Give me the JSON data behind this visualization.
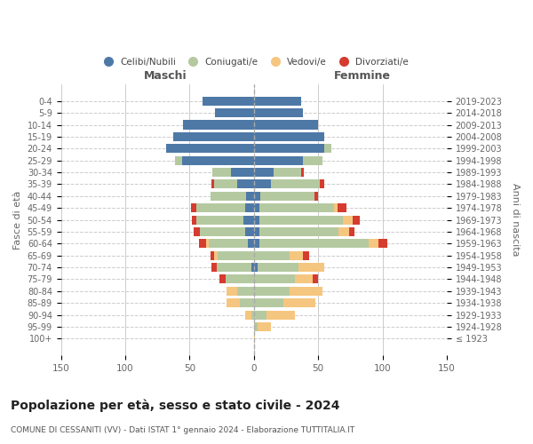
{
  "age_groups": [
    "100+",
    "95-99",
    "90-94",
    "85-89",
    "80-84",
    "75-79",
    "70-74",
    "65-69",
    "60-64",
    "55-59",
    "50-54",
    "45-49",
    "40-44",
    "35-39",
    "30-34",
    "25-29",
    "20-24",
    "15-19",
    "10-14",
    "5-9",
    "0-4"
  ],
  "birth_years": [
    "≤ 1923",
    "1924-1928",
    "1929-1933",
    "1934-1938",
    "1939-1943",
    "1944-1948",
    "1949-1953",
    "1954-1958",
    "1959-1963",
    "1964-1968",
    "1969-1973",
    "1974-1978",
    "1979-1983",
    "1984-1988",
    "1989-1993",
    "1994-1998",
    "1999-2003",
    "2004-2008",
    "2009-2013",
    "2014-2018",
    "2019-2023"
  ],
  "males": {
    "celibi": [
      0,
      0,
      0,
      0,
      0,
      0,
      2,
      0,
      5,
      7,
      8,
      7,
      6,
      13,
      18,
      56,
      68,
      63,
      55,
      30,
      40
    ],
    "coniugati": [
      0,
      0,
      2,
      11,
      13,
      22,
      27,
      28,
      30,
      35,
      37,
      38,
      28,
      18,
      14,
      5,
      0,
      0,
      0,
      0,
      0
    ],
    "vedovi": [
      0,
      0,
      5,
      10,
      8,
      0,
      0,
      3,
      2,
      0,
      0,
      0,
      0,
      0,
      0,
      0,
      0,
      0,
      0,
      0,
      0
    ],
    "divorziati": [
      0,
      0,
      0,
      0,
      0,
      5,
      4,
      3,
      6,
      5,
      3,
      4,
      0,
      2,
      0,
      0,
      0,
      0,
      0,
      0,
      0
    ]
  },
  "females": {
    "nubili": [
      0,
      0,
      0,
      0,
      0,
      0,
      3,
      0,
      4,
      4,
      4,
      4,
      5,
      13,
      15,
      38,
      55,
      55,
      50,
      38,
      37
    ],
    "coniugate": [
      0,
      3,
      10,
      23,
      28,
      32,
      32,
      28,
      85,
      62,
      65,
      58,
      42,
      38,
      22,
      15,
      5,
      0,
      0,
      0,
      0
    ],
    "vedove": [
      1,
      10,
      22,
      25,
      25,
      14,
      20,
      10,
      8,
      8,
      8,
      3,
      0,
      0,
      0,
      0,
      0,
      0,
      0,
      0,
      0
    ],
    "divorziate": [
      0,
      0,
      0,
      0,
      0,
      4,
      0,
      5,
      7,
      4,
      5,
      7,
      3,
      4,
      2,
      0,
      0,
      0,
      0,
      0,
      0
    ]
  },
  "colors": {
    "celibi_nubili": "#4e79a7",
    "coniugati": "#b5c9a1",
    "vedovi": "#f5c67f",
    "divorziati": "#d63b30"
  },
  "title": "Popolazione per età, sesso e stato civile - 2024",
  "subtitle": "COMUNE DI CESSANITI (VV) - Dati ISTAT 1° gennaio 2024 - Elaborazione TUTTITALIA.IT",
  "xlabel_left": "Maschi",
  "xlabel_right": "Femmine",
  "ylabel_left": "Fasce di età",
  "ylabel_right": "Anni di nascita",
  "xlim": 150,
  "background_color": "#ffffff",
  "grid_color": "#cccccc"
}
